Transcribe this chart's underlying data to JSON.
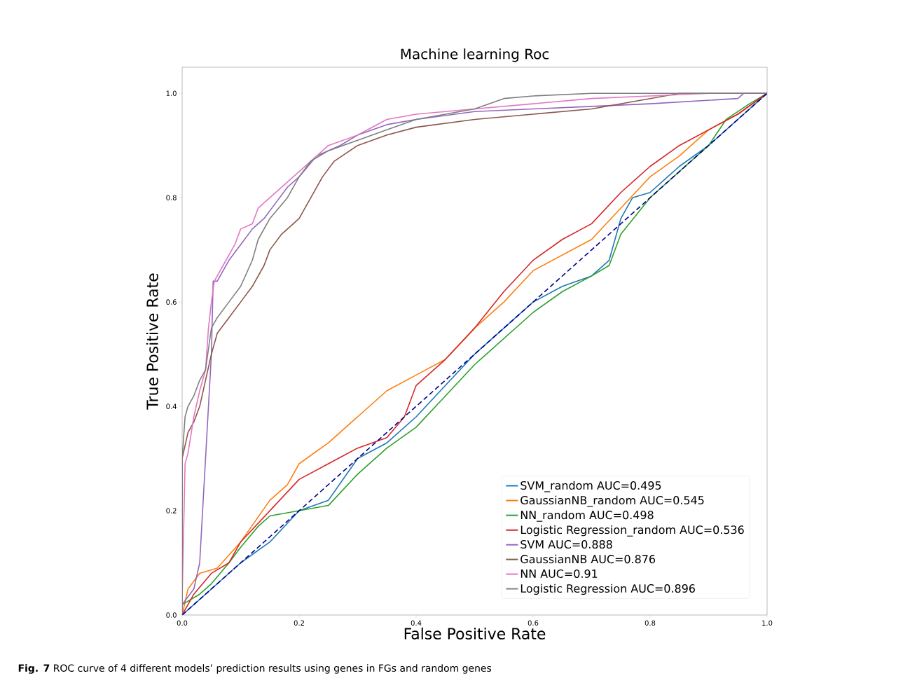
{
  "chart_data": {
    "type": "line",
    "title": "Machine learning Roc",
    "xlabel": "False Positive Rate",
    "ylabel": "True Positive Rate",
    "xlim": [
      0,
      1
    ],
    "ylim": [
      0,
      1.05
    ],
    "xticks": [
      {
        "value": 0,
        "label": "0.0"
      },
      {
        "value": 0.2,
        "label": "0.2"
      },
      {
        "value": 0.4,
        "label": "0.4"
      },
      {
        "value": 0.6,
        "label": "0.6"
      },
      {
        "value": 0.8,
        "label": "0.8"
      },
      {
        "value": 1,
        "label": "1.0"
      }
    ],
    "yticks": [
      {
        "value": 0,
        "label": "0.0"
      },
      {
        "value": 0.2,
        "label": "0.2"
      },
      {
        "value": 0.4,
        "label": "0.4"
      },
      {
        "value": 0.6,
        "label": "0.6"
      },
      {
        "value": 0.8,
        "label": "0.8"
      },
      {
        "value": 1,
        "label": "1.0"
      }
    ],
    "legend": "bottom right",
    "grid": false,
    "line_style": "solid",
    "annotations": [
      "**Fig. 7** ROC curve of 4 different models’ prediction results using genes in FGs and random genes"
    ],
    "series": [
      {
        "name": "SVM_random AUC=0.495",
        "color": "#1f77b4",
        "x": [
          0,
          0.05,
          0.1,
          0.15,
          0.2,
          0.25,
          0.3,
          0.35,
          0.4,
          0.45,
          0.5,
          0.55,
          0.6,
          0.65,
          0.7,
          0.73,
          0.75,
          0.77,
          0.8,
          0.85,
          0.9,
          0.95,
          1
        ],
        "values": [
          0,
          0.05,
          0.1,
          0.14,
          0.2,
          0.22,
          0.3,
          0.33,
          0.38,
          0.44,
          0.5,
          0.55,
          0.6,
          0.63,
          0.65,
          0.68,
          0.76,
          0.8,
          0.81,
          0.86,
          0.9,
          0.95,
          1
        ]
      },
      {
        "name": "GaussianNB_random AUC=0.545",
        "color": "#ff7f0e",
        "x": [
          0,
          0.01,
          0.03,
          0.06,
          0.1,
          0.15,
          0.18,
          0.2,
          0.25,
          0.3,
          0.35,
          0.4,
          0.45,
          0.5,
          0.55,
          0.6,
          0.65,
          0.7,
          0.75,
          0.8,
          0.85,
          0.9,
          0.95,
          1
        ],
        "values": [
          0,
          0.05,
          0.08,
          0.09,
          0.14,
          0.22,
          0.25,
          0.29,
          0.33,
          0.38,
          0.43,
          0.46,
          0.49,
          0.55,
          0.6,
          0.66,
          0.69,
          0.72,
          0.78,
          0.84,
          0.88,
          0.93,
          0.96,
          1
        ]
      },
      {
        "name": "NN_random AUC=0.498",
        "color": "#2ca02c",
        "x": [
          0,
          0,
          0.03,
          0.05,
          0.08,
          0.1,
          0.13,
          0.15,
          0.2,
          0.25,
          0.3,
          0.35,
          0.4,
          0.45,
          0.5,
          0.55,
          0.6,
          0.65,
          0.7,
          0.73,
          0.75,
          0.8,
          0.85,
          0.9,
          0.93,
          0.97,
          1
        ],
        "values": [
          0,
          0.02,
          0.04,
          0.06,
          0.1,
          0.13,
          0.17,
          0.19,
          0.2,
          0.21,
          0.27,
          0.32,
          0.36,
          0.42,
          0.48,
          0.53,
          0.58,
          0.62,
          0.65,
          0.67,
          0.73,
          0.8,
          0.85,
          0.9,
          0.95,
          0.98,
          1
        ]
      },
      {
        "name": "Logistic Regression_random AUC=0.536",
        "color": "#d62728",
        "x": [
          0,
          0.02,
          0.05,
          0.08,
          0.1,
          0.15,
          0.2,
          0.25,
          0.3,
          0.35,
          0.38,
          0.4,
          0.45,
          0.5,
          0.55,
          0.6,
          0.65,
          0.7,
          0.75,
          0.8,
          0.85,
          0.9,
          0.95,
          1
        ],
        "values": [
          0,
          0.04,
          0.08,
          0.1,
          0.14,
          0.2,
          0.26,
          0.29,
          0.32,
          0.34,
          0.38,
          0.44,
          0.49,
          0.55,
          0.62,
          0.68,
          0.72,
          0.75,
          0.81,
          0.86,
          0.9,
          0.93,
          0.96,
          1
        ]
      },
      {
        "name": "SVM AUC=0.888",
        "color": "#9467bd",
        "x": [
          0,
          0,
          0.02,
          0.03,
          0.035,
          0.04,
          0.045,
          0.05,
          0.053,
          0.06,
          0.08,
          0.1,
          0.12,
          0.14,
          0.16,
          0.18,
          0.2,
          0.23,
          0.27,
          0.3,
          0.35,
          0.4,
          0.5,
          0.6,
          0.7,
          0.8,
          0.95,
          0.96,
          1
        ],
        "values": [
          0,
          0.02,
          0.05,
          0.1,
          0.2,
          0.3,
          0.4,
          0.5,
          0.64,
          0.64,
          0.68,
          0.71,
          0.74,
          0.76,
          0.79,
          0.82,
          0.84,
          0.88,
          0.9,
          0.92,
          0.94,
          0.95,
          0.965,
          0.97,
          0.975,
          0.98,
          0.99,
          1,
          1
        ]
      },
      {
        "name": "GaussianNB AUC=0.876",
        "color": "#8c564b",
        "x": [
          0,
          0,
          0.01,
          0.02,
          0.03,
          0.04,
          0.05,
          0.06,
          0.08,
          0.1,
          0.12,
          0.14,
          0.15,
          0.17,
          0.2,
          0.22,
          0.24,
          0.26,
          0.3,
          0.35,
          0.4,
          0.5,
          0.6,
          0.7,
          0.8,
          0.85,
          1
        ],
        "values": [
          0,
          0.3,
          0.35,
          0.37,
          0.4,
          0.45,
          0.5,
          0.54,
          0.57,
          0.6,
          0.63,
          0.67,
          0.7,
          0.73,
          0.76,
          0.8,
          0.84,
          0.87,
          0.9,
          0.92,
          0.935,
          0.95,
          0.96,
          0.97,
          0.99,
          1,
          1
        ]
      },
      {
        "name": "NN AUC=0.91",
        "color": "#e377c2",
        "x": [
          0,
          0,
          0.005,
          0.01,
          0.02,
          0.03,
          0.04,
          0.045,
          0.05,
          0.055,
          0.07,
          0.09,
          0.1,
          0.12,
          0.13,
          0.15,
          0.18,
          0.2,
          0.22,
          0.25,
          0.3,
          0.35,
          0.4,
          0.5,
          0.6,
          0.7,
          0.8,
          0.9,
          1
        ],
        "values": [
          0,
          0.03,
          0.29,
          0.31,
          0.38,
          0.43,
          0.47,
          0.55,
          0.6,
          0.64,
          0.67,
          0.71,
          0.74,
          0.75,
          0.78,
          0.8,
          0.83,
          0.85,
          0.87,
          0.9,
          0.92,
          0.95,
          0.96,
          0.97,
          0.98,
          0.99,
          0.995,
          1,
          1
        ]
      },
      {
        "name": "Logistic Regression AUC=0.896",
        "color": "#7f7f7f",
        "x": [
          0,
          0,
          0.005,
          0.01,
          0.02,
          0.03,
          0.04,
          0.05,
          0.06,
          0.08,
          0.1,
          0.12,
          0.13,
          0.15,
          0.18,
          0.2,
          0.22,
          0.25,
          0.3,
          0.35,
          0.4,
          0.5,
          0.55,
          0.6,
          0.7,
          1
        ],
        "values": [
          0,
          0.3,
          0.38,
          0.4,
          0.42,
          0.45,
          0.47,
          0.55,
          0.57,
          0.6,
          0.63,
          0.68,
          0.72,
          0.76,
          0.8,
          0.84,
          0.87,
          0.89,
          0.91,
          0.93,
          0.95,
          0.97,
          0.99,
          0.995,
          1,
          1
        ]
      },
      {
        "color": "#00008b",
        "line_style": "dashed",
        "x": [
          0,
          1
        ],
        "values": [
          0,
          1
        ]
      }
    ]
  }
}
